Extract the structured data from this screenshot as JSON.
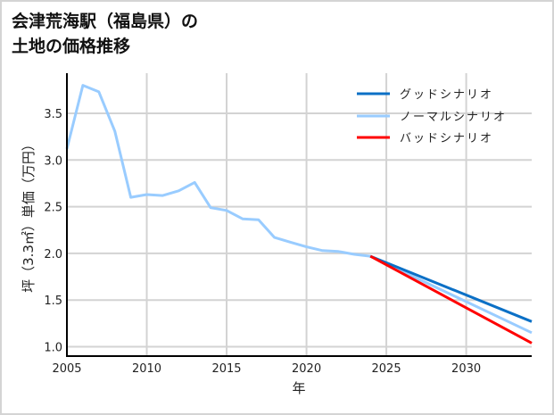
{
  "title": {
    "line1": "会津荒海駅（福島県）の",
    "line2": "土地の価格推移"
  },
  "chart_data": {
    "type": "line",
    "title": "会津荒海駅（福島県）の土地の価格推移",
    "xlabel": "年",
    "ylabel": "坪（3.3㎡）単価（万円）",
    "xlim": [
      2005,
      2034.1
    ],
    "ylim": [
      0.9,
      3.93
    ],
    "xticks": [
      2005,
      2010,
      2015,
      2020,
      2025,
      2030
    ],
    "xtick_labels": [
      "2005",
      "2010",
      "2015",
      "2020",
      "2025",
      "2030"
    ],
    "yticks": [
      1.0,
      1.5,
      2.0,
      2.5,
      3.0,
      3.5
    ],
    "ytick_labels": [
      "1.0",
      "1.5",
      "2.0",
      "2.5",
      "3.0",
      "3.5"
    ],
    "grid": true,
    "legend_position": "upper right",
    "series": [
      {
        "name": "グッドシナリオ",
        "color": "#0b70c6",
        "x": [
          2024,
          2034.1
        ],
        "y": [
          1.97,
          1.27
        ]
      },
      {
        "name": "ノーマルシナリオ",
        "color": "#99ccff",
        "x": [
          2005,
          2006,
          2007,
          2008,
          2009,
          2010,
          2011,
          2012,
          2013,
          2014,
          2015,
          2016,
          2017,
          2018,
          2019,
          2020,
          2021,
          2022,
          2023,
          2024,
          2034.1
        ],
        "y": [
          3.12,
          3.8,
          3.73,
          3.31,
          2.6,
          2.63,
          2.62,
          2.67,
          2.76,
          2.49,
          2.46,
          2.37,
          2.36,
          2.17,
          2.12,
          2.07,
          2.03,
          2.02,
          1.99,
          1.97,
          1.15
        ]
      },
      {
        "name": "バッドシナリオ",
        "color": "#ff0000",
        "x": [
          2024,
          2034.1
        ],
        "y": [
          1.97,
          1.04
        ]
      }
    ]
  }
}
